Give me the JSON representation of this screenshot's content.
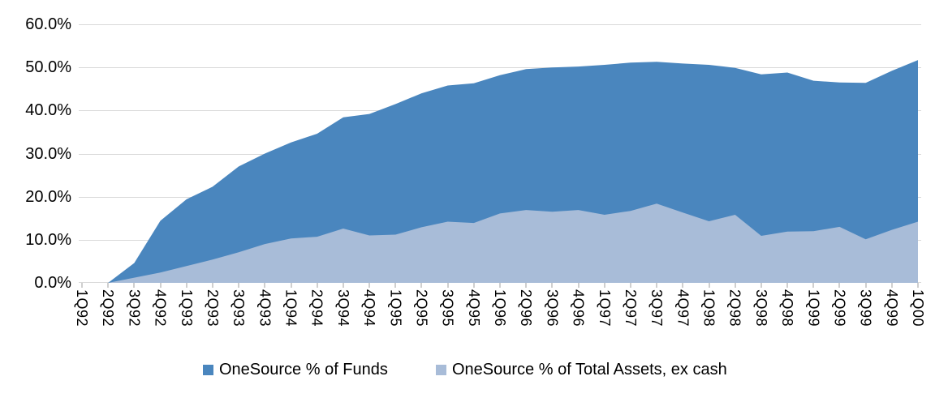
{
  "chart_data": {
    "type": "area",
    "title": "",
    "xlabel": "",
    "ylabel": "",
    "categories": [
      "1Q92",
      "2Q92",
      "3Q92",
      "4Q92",
      "1Q93",
      "2Q93",
      "3Q93",
      "4Q93",
      "1Q94",
      "2Q94",
      "3Q94",
      "4Q94",
      "1Q95",
      "2Q95",
      "3Q95",
      "4Q95",
      "1Q96",
      "2Q96",
      "3Q96",
      "4Q96",
      "1Q97",
      "2Q97",
      "3Q97",
      "4Q97",
      "1Q98",
      "2Q98",
      "3Q98",
      "4Q98",
      "1Q99",
      "2Q99",
      "3Q99",
      "4Q99",
      "1Q00"
    ],
    "series": [
      {
        "name": "OneSource % of Funds",
        "color": "#4A86BE",
        "values": [
          0.0,
          0.0,
          4.6,
          14.4,
          19.4,
          22.3,
          27.0,
          30.0,
          32.6,
          34.6,
          38.4,
          39.2,
          41.5,
          44.0,
          45.8,
          46.3,
          48.2,
          49.6,
          50.0,
          50.2,
          50.6,
          51.1,
          51.3,
          50.9,
          50.6,
          49.9,
          48.4,
          48.8,
          46.9,
          46.5,
          46.4,
          49.2,
          51.7
        ]
      },
      {
        "name": "OneSource % of Total Assets, ex cash",
        "color": "#A8BCD8",
        "values": [
          0.0,
          0.0,
          1.2,
          2.4,
          3.9,
          5.4,
          7.1,
          9.0,
          10.3,
          10.7,
          12.6,
          11.0,
          11.2,
          12.9,
          14.2,
          13.9,
          16.1,
          16.9,
          16.5,
          16.9,
          15.8,
          16.7,
          18.4,
          16.3,
          14.3,
          15.8,
          10.9,
          11.9,
          12.0,
          13.0,
          10.1,
          12.3,
          14.2
        ]
      }
    ],
    "ylim": [
      0,
      60
    ],
    "ytick_labels": [
      "0.0%",
      "10.0%",
      "20.0%",
      "30.0%",
      "40.0%",
      "50.0%",
      "60.0%"
    ],
    "grid": true,
    "legend_position": "bottom",
    "gridline_color": "#D9D9D9",
    "tick_color": "#CFCFCF",
    "background": "#FFFFFF"
  }
}
